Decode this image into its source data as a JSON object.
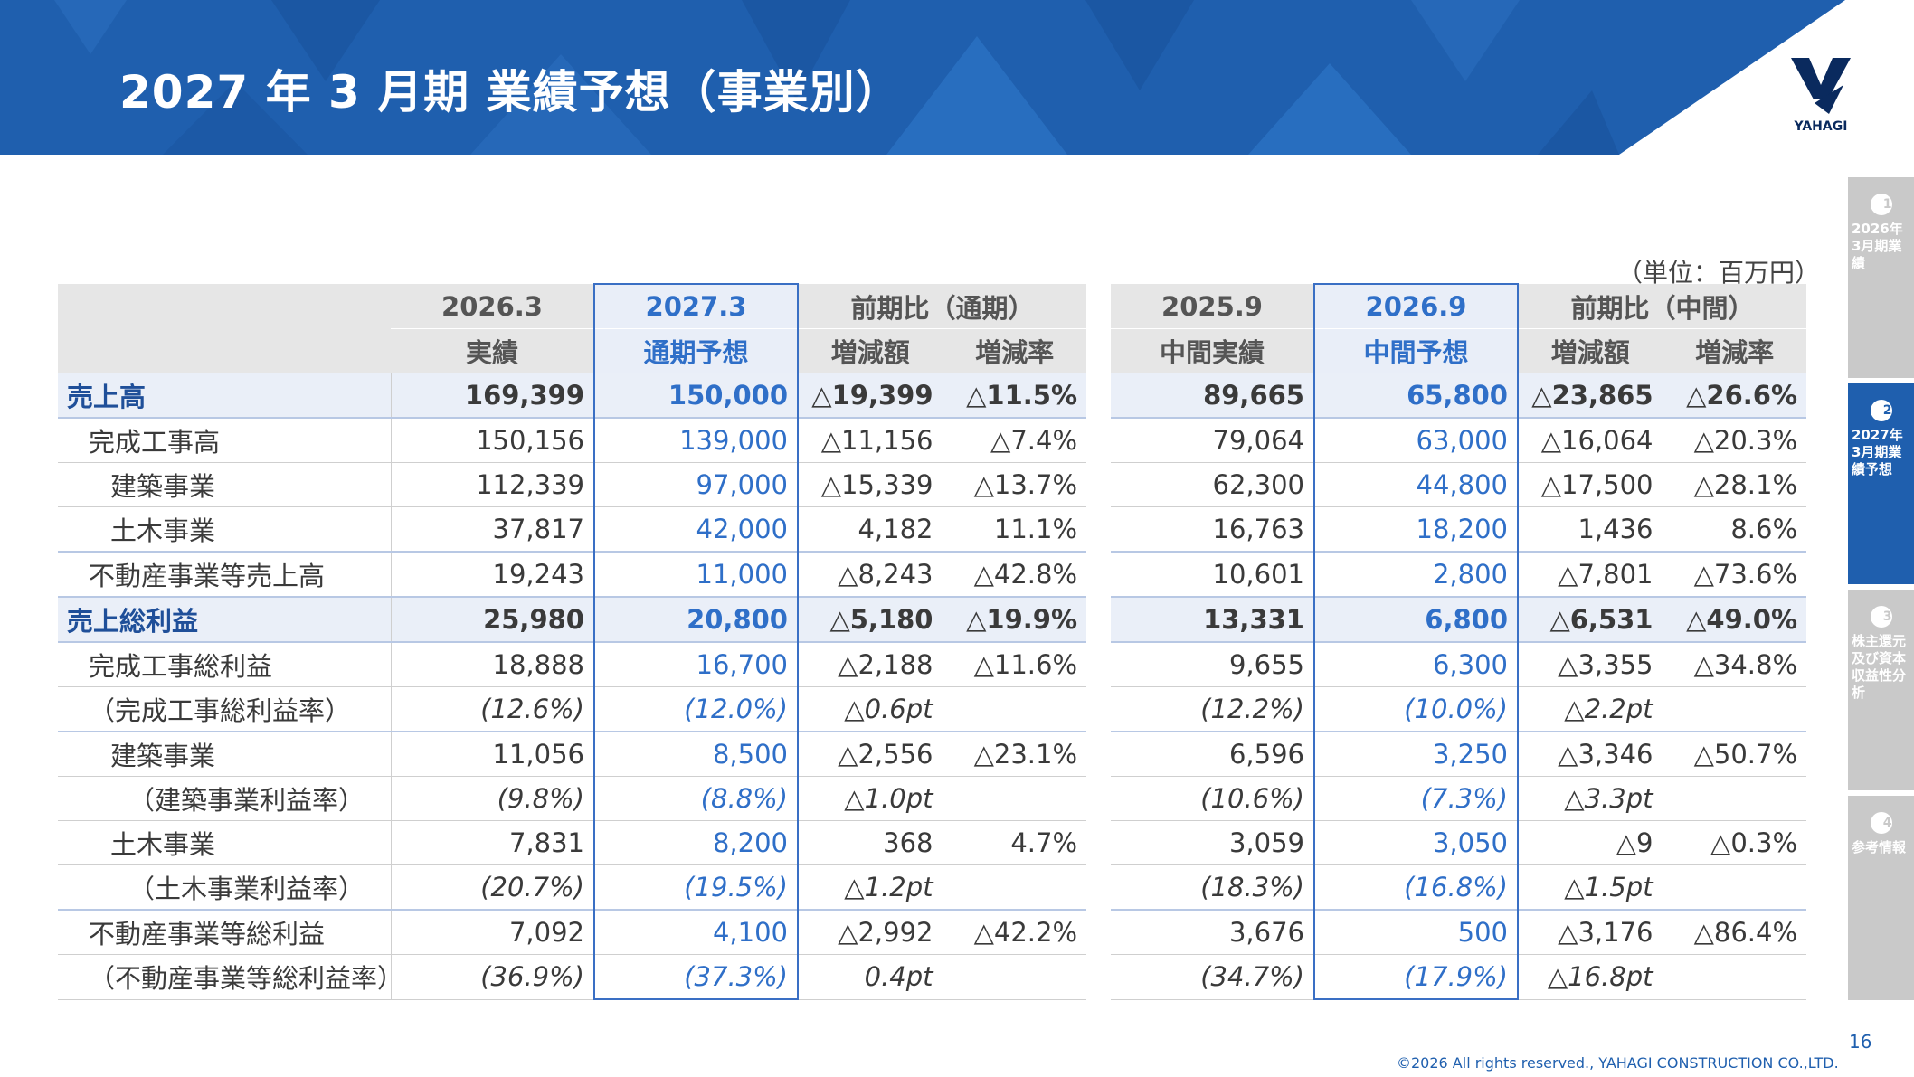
{
  "header": {
    "title": "2027 年 3 月期 業績予想（事業別）",
    "logo_text": "YAHAGI"
  },
  "colors": {
    "header_blue": "#1f5fae",
    "accent_blue": "#2f6fc8",
    "nav_gray": "#c9c9c9"
  },
  "nav": [
    {
      "num": "1",
      "label": "2026年3月期業績",
      "active": false
    },
    {
      "num": "2",
      "label": "2027年3月期業績予想",
      "active": true
    },
    {
      "num": "3",
      "label": "株主還元及び資本収益性分析",
      "active": false
    },
    {
      "num": "4",
      "label": "参考情報",
      "active": false
    }
  ],
  "unit": "（単位：百万円）",
  "left_header": {
    "c1_top": "2026.3",
    "c1_bot": "実績",
    "c2_top": "2027.3",
    "c2_bot": "通期予想",
    "c3_top": "前期比（通期）",
    "c3_a": "増減額",
    "c3_b": "増減率"
  },
  "right_header": {
    "c1_top": "2025.9",
    "c1_bot": "中間実績",
    "c2_top": "2026.9",
    "c2_bot": "中間予想",
    "c3_top": "前期比（中間）",
    "c3_a": "増減額",
    "c3_b": "増減率"
  },
  "rows": [
    {
      "label": "売上高",
      "l": [
        "169,399",
        "150,000",
        "△19,399",
        "△11.5%"
      ],
      "r": [
        "89,665",
        "65,800",
        "△23,865",
        "△26.6%"
      ]
    },
    {
      "label": "完成工事高",
      "l": [
        "150,156",
        "139,000",
        "△11,156",
        "△7.4%"
      ],
      "r": [
        "79,064",
        "63,000",
        "△16,064",
        "△20.3%"
      ]
    },
    {
      "label": "建築事業",
      "l": [
        "112,339",
        "97,000",
        "△15,339",
        "△13.7%"
      ],
      "r": [
        "62,300",
        "44,800",
        "△17,500",
        "△28.1%"
      ]
    },
    {
      "label": "土木事業",
      "l": [
        "37,817",
        "42,000",
        "4,182",
        "11.1%"
      ],
      "r": [
        "16,763",
        "18,200",
        "1,436",
        "8.6%"
      ]
    },
    {
      "label": "不動産事業等売上高",
      "l": [
        "19,243",
        "11,000",
        "△8,243",
        "△42.8%"
      ],
      "r": [
        "10,601",
        "2,800",
        "△7,801",
        "△73.6%"
      ]
    },
    {
      "label": "売上総利益",
      "l": [
        "25,980",
        "20,800",
        "△5,180",
        "△19.9%"
      ],
      "r": [
        "13,331",
        "6,800",
        "△6,531",
        "△49.0%"
      ]
    },
    {
      "label": "完成工事総利益",
      "l": [
        "18,888",
        "16,700",
        "△2,188",
        "△11.6%"
      ],
      "r": [
        "9,655",
        "6,300",
        "△3,355",
        "△34.8%"
      ]
    },
    {
      "label": "（完成工事総利益率）",
      "l": [
        "(12.6%)",
        "(12.0%)",
        "△0.6pt",
        ""
      ],
      "r": [
        "(12.2%)",
        "(10.0%)",
        "△2.2pt",
        ""
      ]
    },
    {
      "label": "建築事業",
      "l": [
        "11,056",
        "8,500",
        "△2,556",
        "△23.1%"
      ],
      "r": [
        "6,596",
        "3,250",
        "△3,346",
        "△50.7%"
      ]
    },
    {
      "label": "（建築事業利益率）",
      "l": [
        "(9.8%)",
        "(8.8%)",
        "△1.0pt",
        ""
      ],
      "r": [
        "(10.6%)",
        "(7.3%)",
        "△3.3pt",
        ""
      ]
    },
    {
      "label": "土木事業",
      "l": [
        "7,831",
        "8,200",
        "368",
        "4.7%"
      ],
      "r": [
        "3,059",
        "3,050",
        "△9",
        "△0.3%"
      ]
    },
    {
      "label": "（土木事業利益率）",
      "l": [
        "(20.7%)",
        "(19.5%)",
        "△1.2pt",
        ""
      ],
      "r": [
        "(18.3%)",
        "(16.8%)",
        "△1.5pt",
        ""
      ]
    },
    {
      "label": "不動産事業等総利益",
      "l": [
        "7,092",
        "4,100",
        "△2,992",
        "△42.2%"
      ],
      "r": [
        "3,676",
        "500",
        "△3,176",
        "△86.4%"
      ]
    },
    {
      "label": "（不動産事業等総利益率）",
      "l": [
        "(36.9%)",
        "(37.3%)",
        "0.4pt",
        ""
      ],
      "r": [
        "(34.7%)",
        "(17.9%)",
        "△16.8pt",
        ""
      ]
    }
  ],
  "page_number": "16",
  "copyright": "©2026 All rights reserved., YAHAGI CONSTRUCTION CO.,LTD."
}
